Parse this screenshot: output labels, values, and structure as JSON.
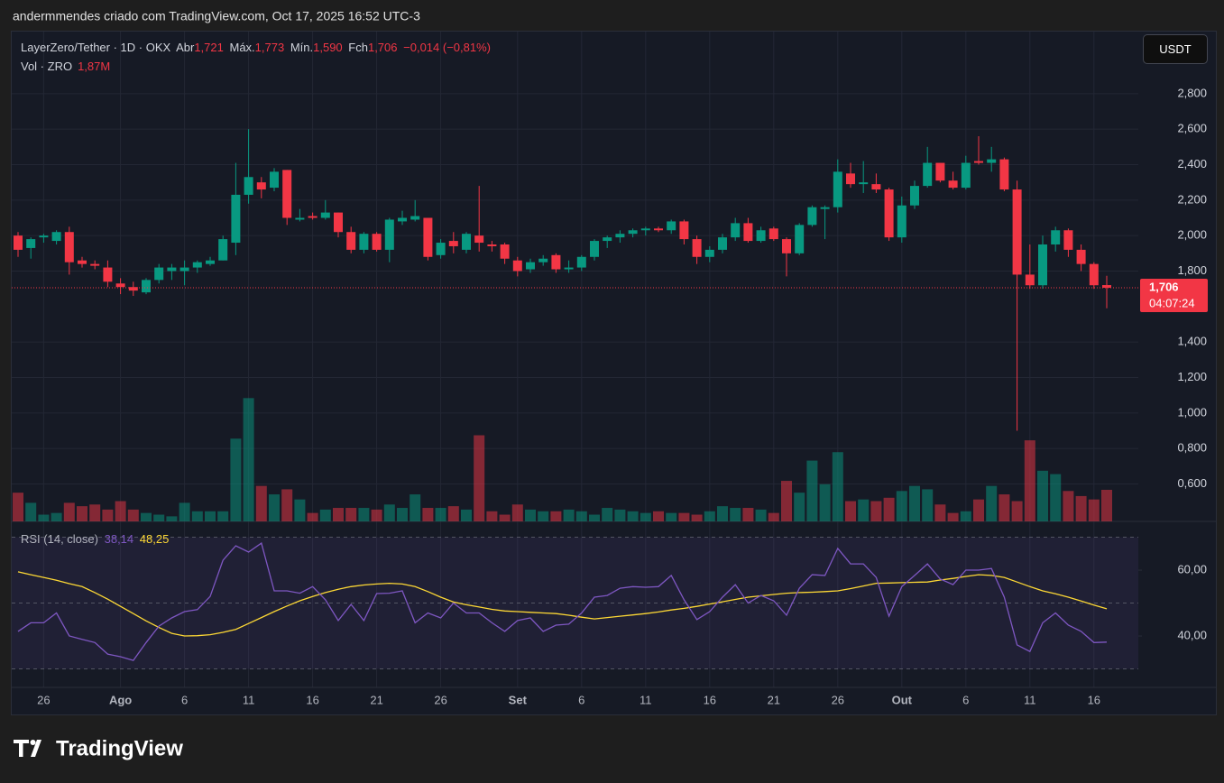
{
  "attribution": "andermmendes criado com TradingView.com, Oct 17, 2025 16:52 UTC-3",
  "brand": "TradingView",
  "chart_data": {
    "type": "candlestick",
    "title": "LayerZero/Tether · 1D · OKX",
    "currency": "USDT",
    "legend": {
      "open_label": "Abr",
      "open": "1,721",
      "high_label": "Máx.",
      "high": "1,773",
      "low_label": "Mín.",
      "low": "1,590",
      "close_label": "Fch",
      "close": "1,706",
      "change": "−0,014 (−0,81%)"
    },
    "up_color": "#089981",
    "down_color": "#f23645",
    "x": [
      "2025-07-24",
      "2025-07-25",
      "2025-07-26",
      "2025-07-27",
      "2025-07-28",
      "2025-07-29",
      "2025-07-30",
      "2025-07-31",
      "2025-08-01",
      "2025-08-02",
      "2025-08-03",
      "2025-08-04",
      "2025-08-05",
      "2025-08-06",
      "2025-08-07",
      "2025-08-08",
      "2025-08-09",
      "2025-08-10",
      "2025-08-11",
      "2025-08-12",
      "2025-08-13",
      "2025-08-14",
      "2025-08-15",
      "2025-08-16",
      "2025-08-17",
      "2025-08-18",
      "2025-08-19",
      "2025-08-20",
      "2025-08-21",
      "2025-08-22",
      "2025-08-23",
      "2025-08-24",
      "2025-08-25",
      "2025-08-26",
      "2025-08-27",
      "2025-08-28",
      "2025-08-29",
      "2025-08-30",
      "2025-08-31",
      "2025-09-01",
      "2025-09-02",
      "2025-09-03",
      "2025-09-04",
      "2025-09-05",
      "2025-09-06",
      "2025-09-07",
      "2025-09-08",
      "2025-09-09",
      "2025-09-10",
      "2025-09-11",
      "2025-09-12",
      "2025-09-13",
      "2025-09-14",
      "2025-09-15",
      "2025-09-16",
      "2025-09-17",
      "2025-09-18",
      "2025-09-19",
      "2025-09-20",
      "2025-09-21",
      "2025-09-22",
      "2025-09-23",
      "2025-09-24",
      "2025-09-25",
      "2025-09-26",
      "2025-09-27",
      "2025-09-28",
      "2025-09-29",
      "2025-09-30",
      "2025-10-01",
      "2025-10-02",
      "2025-10-03",
      "2025-10-04",
      "2025-10-05",
      "2025-10-06",
      "2025-10-07",
      "2025-10-08",
      "2025-10-09",
      "2025-10-10",
      "2025-10-11",
      "2025-10-12",
      "2025-10-13",
      "2025-10-14",
      "2025-10-15",
      "2025-10-16",
      "2025-10-17"
    ],
    "open": [
      2.0,
      1.93,
      1.99,
      1.97,
      2.02,
      1.86,
      1.84,
      1.82,
      1.73,
      1.71,
      1.68,
      1.75,
      1.8,
      1.8,
      1.82,
      1.84,
      1.86,
      1.96,
      2.23,
      2.3,
      2.27,
      2.37,
      2.09,
      2.11,
      2.1,
      2.13,
      2.02,
      1.92,
      2.01,
      1.92,
      2.08,
      2.09,
      2.1,
      1.89,
      1.97,
      1.92,
      2.0,
      1.95,
      1.95,
      1.86,
      1.81,
      1.85,
      1.89,
      1.81,
      1.82,
      1.88,
      1.97,
      1.99,
      2.01,
      2.03,
      2.04,
      2.03,
      2.08,
      1.98,
      1.88,
      1.92,
      1.99,
      2.07,
      1.97,
      2.04,
      1.98,
      1.9,
      2.06,
      2.15,
      2.16,
      2.35,
      2.29,
      2.29,
      2.26,
      1.99,
      2.17,
      2.28,
      2.41,
      2.31,
      2.27,
      2.42,
      2.41,
      2.43,
      2.26,
      1.78,
      1.72,
      1.95,
      2.03,
      1.92,
      1.84,
      1.721
    ],
    "high": [
      2.02,
      1.99,
      2.01,
      2.03,
      2.05,
      1.88,
      1.86,
      1.86,
      1.76,
      1.74,
      1.76,
      1.84,
      1.84,
      1.86,
      1.86,
      1.88,
      2.0,
      2.41,
      2.6,
      2.33,
      2.38,
      2.37,
      2.15,
      2.13,
      2.2,
      2.13,
      2.05,
      2.02,
      2.02,
      2.1,
      2.14,
      2.2,
      2.1,
      1.98,
      2.02,
      2.02,
      2.28,
      1.97,
      1.96,
      1.88,
      1.87,
      1.89,
      1.9,
      1.86,
      1.89,
      1.98,
      2.0,
      2.03,
      2.04,
      2.05,
      2.05,
      2.09,
      2.09,
      2.0,
      1.94,
      2.01,
      2.1,
      2.1,
      2.05,
      2.05,
      1.99,
      2.07,
      2.17,
      2.17,
      2.43,
      2.41,
      2.42,
      2.35,
      2.27,
      2.22,
      2.31,
      2.5,
      2.41,
      2.36,
      2.45,
      2.56,
      2.5,
      2.44,
      2.31,
      1.95,
      2.0,
      2.05,
      2.04,
      1.95,
      1.85,
      1.773
    ],
    "low": [
      1.88,
      1.87,
      1.96,
      1.95,
      1.78,
      1.82,
      1.81,
      1.71,
      1.67,
      1.66,
      1.67,
      1.73,
      1.75,
      1.72,
      1.79,
      1.83,
      1.86,
      1.89,
      2.18,
      2.21,
      2.25,
      2.06,
      2.08,
      2.09,
      2.09,
      1.99,
      1.9,
      1.9,
      1.91,
      1.85,
      2.06,
      2.08,
      1.86,
      1.87,
      1.9,
      1.9,
      1.91,
      1.91,
      1.84,
      1.77,
      1.79,
      1.83,
      1.79,
      1.79,
      1.8,
      1.86,
      1.93,
      1.96,
      1.99,
      2.0,
      2.02,
      2.01,
      1.95,
      1.84,
      1.85,
      1.9,
      1.97,
      1.96,
      1.96,
      1.97,
      1.77,
      1.89,
      2.05,
      1.98,
      2.13,
      2.27,
      2.24,
      2.24,
      1.97,
      1.96,
      2.15,
      2.27,
      2.3,
      2.26,
      2.26,
      2.4,
      2.36,
      2.25,
      0.9,
      1.7,
      1.7,
      1.91,
      1.88,
      1.8,
      1.7,
      1.59
    ],
    "close": [
      1.92,
      1.98,
      2.0,
      2.02,
      1.85,
      1.84,
      1.83,
      1.74,
      1.71,
      1.69,
      1.75,
      1.82,
      1.82,
      1.82,
      1.85,
      1.86,
      1.98,
      2.23,
      2.33,
      2.26,
      2.36,
      2.1,
      2.1,
      2.1,
      2.13,
      2.02,
      1.92,
      2.01,
      1.92,
      2.09,
      2.1,
      2.11,
      1.88,
      1.96,
      1.94,
      2.01,
      1.96,
      1.94,
      1.87,
      1.8,
      1.85,
      1.87,
      1.81,
      1.82,
      1.88,
      1.97,
      1.99,
      2.01,
      2.03,
      2.04,
      2.03,
      2.08,
      1.98,
      1.88,
      1.92,
      1.99,
      2.07,
      1.97,
      2.03,
      1.98,
      1.9,
      2.06,
      2.16,
      2.16,
      2.36,
      2.29,
      2.3,
      2.26,
      1.99,
      2.17,
      2.28,
      2.41,
      2.31,
      2.27,
      2.41,
      2.41,
      2.43,
      2.26,
      1.78,
      1.72,
      1.95,
      2.03,
      1.92,
      1.84,
      1.72,
      1.706
    ],
    "ylim": [
      0.389,
      3.15
    ],
    "yticks": [
      {
        "value": 0.6,
        "label": "0,600"
      },
      {
        "value": 0.8,
        "label": "0,800"
      },
      {
        "value": 1.0,
        "label": "1,000"
      },
      {
        "value": 1.2,
        "label": "1,200"
      },
      {
        "value": 1.4,
        "label": "1,400"
      },
      {
        "value": 1.8,
        "label": "1,800"
      },
      {
        "value": 2.0,
        "label": "2,000"
      },
      {
        "value": 2.2,
        "label": "2,200"
      },
      {
        "value": 2.4,
        "label": "2,400"
      },
      {
        "value": 2.6,
        "label": "2,600"
      },
      {
        "value": 2.8,
        "label": "2,800"
      }
    ],
    "xticks": [
      {
        "value": "2025-07-26",
        "label": "26"
      },
      {
        "value": "2025-08-01",
        "label": "Ago"
      },
      {
        "value": "2025-08-06",
        "label": "6"
      },
      {
        "value": "2025-08-11",
        "label": "11"
      },
      {
        "value": "2025-08-16",
        "label": "16"
      },
      {
        "value": "2025-08-21",
        "label": "21"
      },
      {
        "value": "2025-08-26",
        "label": "26"
      },
      {
        "value": "2025-09-01",
        "label": "Set"
      },
      {
        "value": "2025-09-06",
        "label": "6"
      },
      {
        "value": "2025-09-11",
        "label": "11"
      },
      {
        "value": "2025-09-16",
        "label": "16"
      },
      {
        "value": "2025-09-21",
        "label": "21"
      },
      {
        "value": "2025-09-26",
        "label": "26"
      },
      {
        "value": "2025-10-01",
        "label": "Out"
      },
      {
        "value": "2025-10-06",
        "label": "6"
      },
      {
        "value": "2025-10-11",
        "label": "11"
      },
      {
        "value": "2025-10-16",
        "label": "16"
      }
    ],
    "grid": true,
    "last_price": {
      "value": 1.706,
      "label": "1,706",
      "countdown": "04:07:24"
    },
    "volume": {
      "name": "Vol · ZRO",
      "value_label": "1,87M",
      "ylim": [
        0,
        29
      ],
      "up_color": "rgba(8,153,129,0.5)",
      "down_color": "rgba(242,54,69,0.5)",
      "values": [
        1.7,
        1.1,
        0.4,
        0.5,
        1.1,
        0.9,
        1.0,
        0.7,
        1.2,
        0.7,
        0.5,
        0.4,
        0.3,
        1.1,
        0.6,
        0.6,
        0.6,
        4.9,
        7.3,
        2.1,
        1.6,
        1.9,
        1.3,
        0.5,
        0.7,
        0.8,
        0.8,
        0.8,
        0.7,
        1.0,
        0.8,
        1.6,
        0.8,
        0.8,
        0.9,
        0.7,
        5.1,
        0.6,
        0.4,
        1.0,
        0.7,
        0.6,
        0.6,
        0.7,
        0.6,
        0.4,
        0.8,
        0.7,
        0.6,
        0.5,
        0.6,
        0.5,
        0.5,
        0.4,
        0.6,
        0.9,
        0.8,
        0.8,
        0.7,
        0.5,
        2.4,
        1.7,
        3.6,
        2.2,
        4.1,
        1.2,
        1.3,
        1.2,
        1.4,
        1.8,
        2.1,
        1.9,
        1.0,
        0.5,
        0.6,
        1.3,
        2.1,
        1.6,
        1.2,
        4.8,
        3.0,
        2.8,
        1.8,
        1.5,
        1.3,
        1.87
      ]
    },
    "rsi": {
      "name": "RSI (14, close)",
      "color": "#7e57c2",
      "ma_color": "#fdd835",
      "value_label": "38,14",
      "ma_label": "48,25",
      "ylim": [
        24.4,
        74.8
      ],
      "yticks": [
        {
          "value": 40,
          "label": "40,00"
        },
        {
          "value": 60,
          "label": "60,00"
        }
      ],
      "bands": [
        30,
        50,
        70
      ],
      "values": [
        41.4,
        44,
        44,
        47,
        40,
        39,
        38,
        34.5,
        33.7,
        32.6,
        38,
        43,
        45.5,
        47.4,
        48,
        52,
        63,
        67.4,
        65.5,
        68.2,
        53.7,
        53.7,
        53,
        55,
        51,
        44.7,
        49.6,
        44.7,
        52.9,
        53,
        53.7,
        44,
        47,
        45.5,
        50,
        47,
        47,
        44,
        41.4,
        44.7,
        45.5,
        41.4,
        43.3,
        43.6,
        47,
        51.8,
        52.3,
        54.5,
        55,
        54.8,
        55,
        58.4,
        51,
        45,
        47.4,
        51.8,
        55.6,
        50,
        52.3,
        50.7,
        46.3,
        54.5,
        58.6,
        58.4,
        66.6,
        61.9,
        61.9,
        57.8,
        46,
        55,
        58.4,
        61.9,
        57.3,
        55.6,
        60,
        60,
        60.5,
        51.8,
        37.3,
        35.3,
        44,
        47,
        43.3,
        41.4,
        38,
        38.14
      ],
      "ma_values": [
        59.5,
        58.6,
        57.8,
        56.9,
        55.9,
        55,
        53.2,
        51.2,
        49,
        46.8,
        44.6,
        42.6,
        40.8,
        40,
        40.1,
        40.4,
        41.1,
        42,
        43.8,
        45.6,
        47.4,
        49.1,
        50.7,
        52,
        53.2,
        54.2,
        55,
        55.5,
        55.8,
        56,
        55.8,
        55,
        53.5,
        51.8,
        50.3,
        49.5,
        48.8,
        48.1,
        47.6,
        47.4,
        47.2,
        47,
        46.8,
        46.3,
        45.7,
        45.2,
        45.6,
        46,
        46.4,
        46.8,
        47.3,
        47.9,
        48.4,
        49,
        49.7,
        50.4,
        51.1,
        51.8,
        52.2,
        52.6,
        53,
        53.2,
        53.3,
        53.5,
        53.7,
        54.4,
        55.2,
        56,
        56.1,
        56.2,
        56.3,
        56.4,
        57,
        57.5,
        58.1,
        58.6,
        58.4,
        57.8,
        56.4,
        55,
        53.7,
        52.8,
        51.8,
        50.6,
        49.4,
        48.25
      ]
    }
  }
}
